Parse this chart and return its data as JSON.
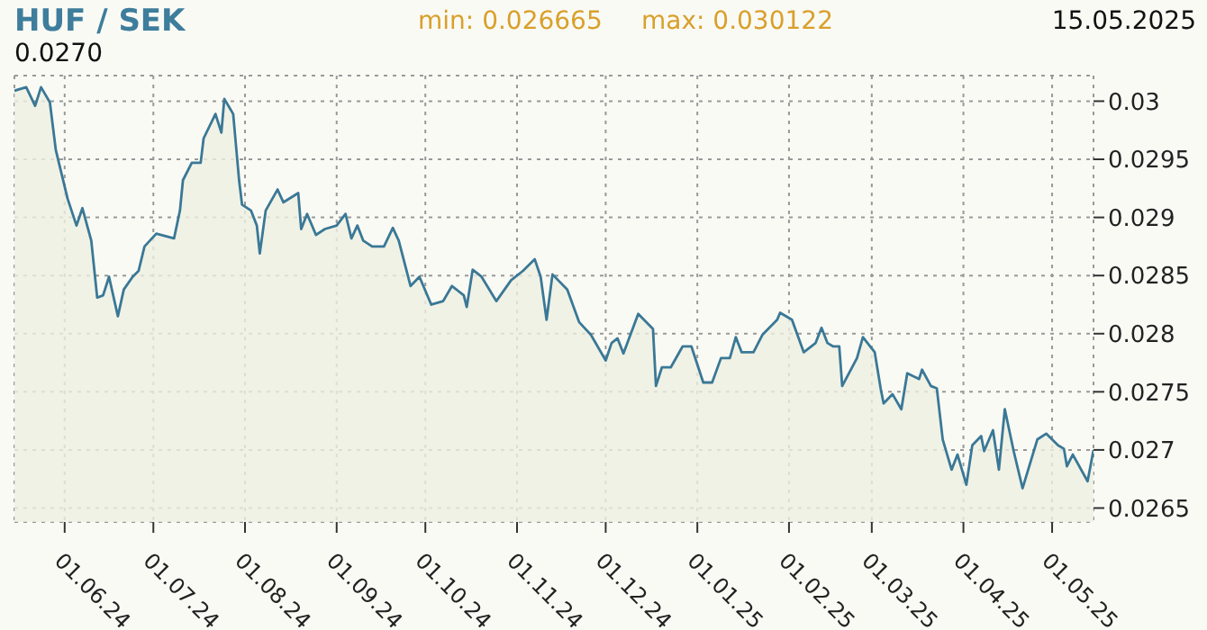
{
  "chart_data": {
    "type": "area",
    "title": "HUF / SEK",
    "annotations": [
      "min: 0.026665",
      "max: 0.030122",
      "15.05.2025",
      "0.0270"
    ],
    "x": [
      "2024-05-15",
      "2024-05-19",
      "2024-05-22",
      "2024-05-24",
      "2024-05-27",
      "2024-05-29",
      "2024-06-02",
      "2024-06-05",
      "2024-06-07",
      "2024-06-10",
      "2024-06-12",
      "2024-06-14",
      "2024-06-16",
      "2024-06-19",
      "2024-06-21",
      "2024-06-24",
      "2024-06-26",
      "2024-06-28",
      "2024-07-02",
      "2024-07-08",
      "2024-07-10",
      "2024-07-11",
      "2024-07-14",
      "2024-07-17",
      "2024-07-18",
      "2024-07-22",
      "2024-07-24",
      "2024-07-25",
      "2024-07-28",
      "2024-07-30",
      "2024-07-31",
      "2024-08-03",
      "2024-08-05",
      "2024-08-06",
      "2024-08-08",
      "2024-08-12",
      "2024-08-14",
      "2024-08-19",
      "2024-08-20",
      "2024-08-22",
      "2024-08-25",
      "2024-08-28",
      "2024-09-01",
      "2024-09-04",
      "2024-09-06",
      "2024-09-08",
      "2024-09-10",
      "2024-09-13",
      "2024-09-17",
      "2024-09-20",
      "2024-09-22",
      "2024-09-26",
      "2024-09-29",
      "2024-10-03",
      "2024-10-07",
      "2024-10-10",
      "2024-10-14",
      "2024-10-15",
      "2024-10-17",
      "2024-10-20",
      "2024-10-25",
      "2024-10-30",
      "2024-11-03",
      "2024-11-07",
      "2024-11-09",
      "2024-11-11",
      "2024-11-13",
      "2024-11-18",
      "2024-11-22",
      "2024-11-26",
      "2024-12-01",
      "2024-12-03",
      "2024-12-05",
      "2024-12-07",
      "2024-12-12",
      "2024-12-17",
      "2024-12-18",
      "2024-12-20",
      "2024-12-23",
      "2024-12-27",
      "2024-12-30",
      "2025-01-03",
      "2025-01-06",
      "2025-01-09",
      "2025-01-12",
      "2025-01-14",
      "2025-01-16",
      "2025-01-20",
      "2025-01-23",
      "2025-01-28",
      "2025-01-29",
      "2025-02-02",
      "2025-02-06",
      "2025-02-10",
      "2025-02-12",
      "2025-02-14",
      "2025-02-16",
      "2025-02-18",
      "2025-02-19",
      "2025-02-24",
      "2025-02-26",
      "2025-03-02",
      "2025-03-04",
      "2025-03-05",
      "2025-03-08",
      "2025-03-11",
      "2025-03-13",
      "2025-03-17",
      "2025-03-18",
      "2025-03-21",
      "2025-03-23",
      "2025-03-25",
      "2025-03-28",
      "2025-03-30",
      "2025-04-02",
      "2025-04-04",
      "2025-04-07",
      "2025-04-08",
      "2025-04-11",
      "2025-04-13",
      "2025-04-15",
      "2025-04-18",
      "2025-04-21",
      "2025-04-26",
      "2025-04-29",
      "2025-05-03",
      "2025-05-05",
      "2025-05-06",
      "2025-05-08",
      "2025-05-13",
      "2025-05-15"
    ],
    "series": [
      {
        "color": "#3a7896",
        "values": [
          0.03009,
          0.03012,
          0.02996,
          0.03012,
          0.02999,
          0.02958,
          0.02916,
          0.02893,
          0.02908,
          0.0288,
          0.02831,
          0.02833,
          0.02849,
          0.02815,
          0.02838,
          0.02849,
          0.02854,
          0.02875,
          0.02886,
          0.02882,
          0.02906,
          0.02932,
          0.02947,
          0.02947,
          0.02968,
          0.02989,
          0.02973,
          0.03002,
          0.02989,
          0.02932,
          0.02911,
          0.02906,
          0.02893,
          0.02869,
          0.02906,
          0.02924,
          0.02913,
          0.02921,
          0.0289,
          0.02903,
          0.02885,
          0.0289,
          0.02893,
          0.02903,
          0.02882,
          0.02893,
          0.0288,
          0.02875,
          0.02875,
          0.02891,
          0.0288,
          0.02841,
          0.02849,
          0.02825,
          0.02828,
          0.02841,
          0.02833,
          0.02823,
          0.02855,
          0.02849,
          0.02828,
          0.02846,
          0.02854,
          0.02864,
          0.02849,
          0.02812,
          0.02851,
          0.02838,
          0.0281,
          0.02799,
          0.02777,
          0.02792,
          0.02796,
          0.02783,
          0.02817,
          0.02804,
          0.02755,
          0.02771,
          0.02771,
          0.02789,
          0.02789,
          0.02758,
          0.02758,
          0.02779,
          0.02779,
          0.02797,
          0.02784,
          0.02784,
          0.02799,
          0.02812,
          0.02818,
          0.02812,
          0.02784,
          0.02792,
          0.02805,
          0.02792,
          0.02789,
          0.02789,
          0.02755,
          0.02779,
          0.02797,
          0.02784,
          0.02753,
          0.0274,
          0.02748,
          0.02735,
          0.02766,
          0.02761,
          0.02769,
          0.02755,
          0.02753,
          0.02709,
          0.02683,
          0.02696,
          0.0267,
          0.02704,
          0.02712,
          0.02699,
          0.02717,
          0.02683,
          0.02735,
          0.02699,
          0.02667,
          0.02709,
          0.02714,
          0.02704,
          0.02701,
          0.02686,
          0.02696,
          0.02673,
          0.027
        ]
      }
    ],
    "ylim": [
      0.02638,
      0.03022
    ],
    "yticks": [
      0.0265,
      0.027,
      0.0275,
      0.028,
      0.0285,
      0.029,
      0.0295,
      0.03
    ],
    "xlim": [
      "2024-05-15",
      "2025-05-15"
    ],
    "xticks": [
      {
        "value": "2024-06-01",
        "label": "01.06.24"
      },
      {
        "value": "2024-07-01",
        "label": "01.07.24"
      },
      {
        "value": "2024-08-01",
        "label": "01.08.24"
      },
      {
        "value": "2024-09-01",
        "label": "01.09.24"
      },
      {
        "value": "2024-10-01",
        "label": "01.10.24"
      },
      {
        "value": "2024-11-01",
        "label": "01.11.24"
      },
      {
        "value": "2024-12-01",
        "label": "01.12.24"
      },
      {
        "value": "2025-01-01",
        "label": "01.01.25"
      },
      {
        "value": "2025-02-01",
        "label": "01.02.25"
      },
      {
        "value": "2025-03-01",
        "label": "01.03.25"
      },
      {
        "value": "2025-04-01",
        "label": "01.04.25"
      },
      {
        "value": "2025-05-01",
        "label": "01.05.25"
      }
    ],
    "grid": true
  }
}
